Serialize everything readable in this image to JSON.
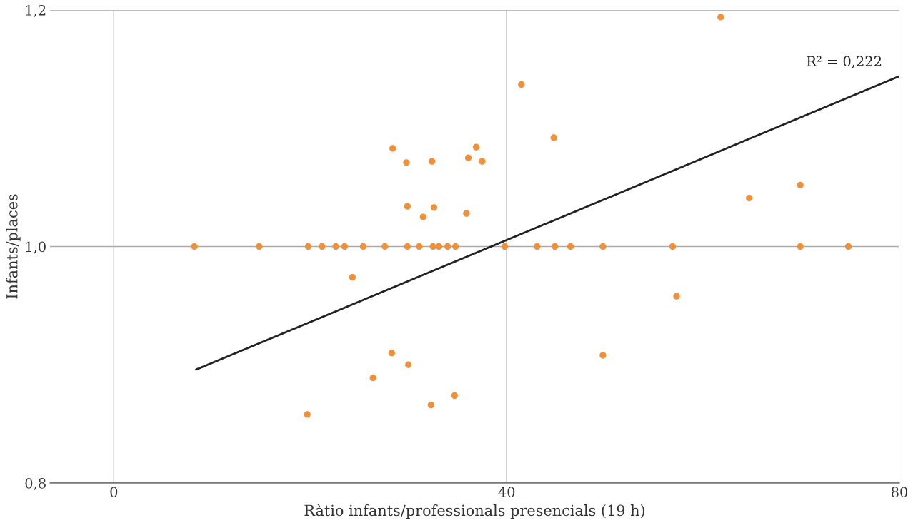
{
  "chart_data": {
    "type": "scatter",
    "xlabel": "Ràtio infants/professionals presencials (19 h)",
    "ylabel": "Infants/places",
    "xlim": [
      -6.5,
      80
    ],
    "xticks": [
      0,
      40,
      80
    ],
    "ylim": [
      0.8,
      1.2
    ],
    "yticks": [
      {
        "value": 0.8,
        "label": "0,8"
      },
      {
        "value": 1.0,
        "label": "1,0"
      },
      {
        "value": 1.2,
        "label": "1,2"
      }
    ],
    "grid": true,
    "legend": false,
    "series": [
      {
        "color": "#f0913a",
        "marker": "circle",
        "x": [
          8.2,
          14.8,
          19.8,
          21.2,
          22.6,
          23.5,
          25.4,
          27.6,
          29.9,
          31.1,
          32.5,
          33.1,
          34.0,
          34.8,
          39.8,
          43.1,
          44.9,
          46.5,
          49.8,
          56.9,
          69.9,
          74.8,
          61.8,
          41.5,
          44.8,
          28.4,
          36.9,
          36.1,
          29.8,
          32.4,
          37.5,
          69.9,
          64.7,
          29.9,
          32.6,
          35.9,
          31.5,
          24.3,
          57.3,
          28.3,
          49.8,
          30.0,
          26.4,
          34.7,
          32.3,
          19.7
        ],
        "values": [
          1.0,
          1.0,
          1.0,
          1.0,
          1.0,
          1.0,
          1.0,
          1.0,
          1.0,
          1.0,
          1.0,
          1.0,
          1.0,
          1.0,
          1.0,
          1.0,
          1.0,
          1.0,
          1.0,
          1.0,
          1.0,
          1.0,
          1.194,
          1.137,
          1.092,
          1.083,
          1.084,
          1.075,
          1.071,
          1.072,
          1.072,
          1.052,
          1.041,
          1.034,
          1.033,
          1.028,
          1.025,
          0.974,
          0.958,
          0.91,
          0.908,
          0.9,
          0.889,
          0.874,
          0.866,
          0.858
        ]
      },
      {
        "type": "line",
        "color": "#222222",
        "marker": "none",
        "line_style": "solid",
        "x": [
          8.4,
          80
        ],
        "values": [
          0.896,
          1.144
        ]
      }
    ],
    "annotations": [
      "R² = 0,222"
    ]
  }
}
